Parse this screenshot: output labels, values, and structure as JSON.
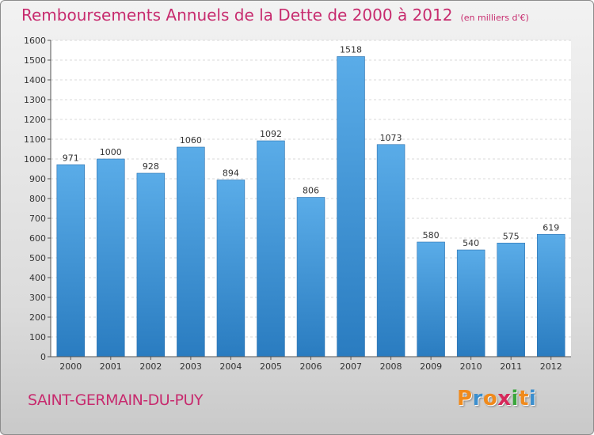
{
  "chart_data": {
    "type": "bar",
    "title": "Remboursements Annuels de la Dette de 2000 à 2012",
    "unit": "(en milliers d'€)",
    "xlabel": "",
    "ylabel": "",
    "categories": [
      "2000",
      "2001",
      "2002",
      "2003",
      "2004",
      "2005",
      "2006",
      "2007",
      "2008",
      "2009",
      "2010",
      "2011",
      "2012"
    ],
    "values": [
      971,
      1000,
      928,
      1060,
      894,
      1092,
      806,
      1518,
      1073,
      580,
      540,
      575,
      619
    ],
    "ylim": [
      0,
      1600
    ],
    "yticks": [
      0,
      100,
      200,
      300,
      400,
      500,
      600,
      700,
      800,
      900,
      1000,
      1100,
      1200,
      1300,
      1400,
      1500,
      1600
    ],
    "grid": true,
    "bar_color": "#3d8fd4"
  },
  "commune": "SAINT-GERMAIN-DU-PUY",
  "logo": {
    "letters": [
      "P",
      "r",
      "o",
      "x",
      "i",
      "t",
      "i"
    ],
    "colors": [
      "#f08a1c",
      "#3c8fce",
      "#f08a1c",
      "#d6285a",
      "#3aa63c",
      "#f08a1c",
      "#3c8fce"
    ]
  }
}
